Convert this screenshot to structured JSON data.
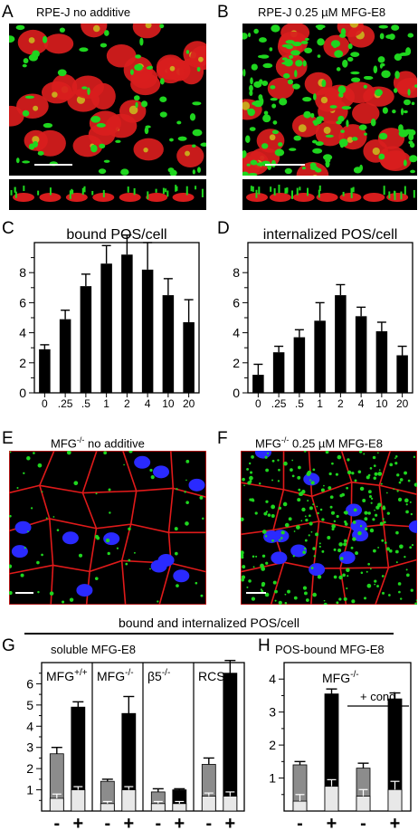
{
  "panels": {
    "A": {
      "letter": "A",
      "title": "RPE-J  no additive"
    },
    "B": {
      "letter": "B",
      "title": "RPE-J  0.25 µM MFG-E8"
    },
    "C": {
      "letter": "C"
    },
    "D": {
      "letter": "D"
    },
    "E": {
      "letter": "E",
      "title_pre": "MFG",
      "title_sup": "-/-",
      "title_post": " no additive"
    },
    "F": {
      "letter": "F",
      "title_pre": "MFG",
      "title_sup": "-/-",
      "title_post": " 0.25 µM MFG-E8"
    },
    "G": {
      "letter": "G"
    },
    "H": {
      "letter": "H"
    }
  },
  "section_title": "bound and internalized POS/cell",
  "colors": {
    "nuclei_red": "#d91d1d",
    "pos_green": "#1fd61f",
    "border_red": "#e01a1a",
    "nuclei_blue": "#2a2aff",
    "bar_black": "#000000",
    "bar_gray": "#8c8c8c",
    "bar_light": "#e8e8e8"
  },
  "chart_data": [
    {
      "type": "bar",
      "panel": "C",
      "title": "bound POS/cell",
      "categories": [
        "0",
        ".25",
        ".5",
        "1",
        "2",
        "4",
        "10",
        "20"
      ],
      "values": [
        2.9,
        4.9,
        7.1,
        8.6,
        9.2,
        8.2,
        6.5,
        4.7
      ],
      "errors": [
        0.3,
        0.6,
        0.8,
        1.2,
        1.3,
        1.8,
        1.1,
        1.5
      ],
      "ylim": [
        0,
        10
      ],
      "yticks": [
        "0",
        "2",
        "4",
        "6",
        "8"
      ]
    },
    {
      "type": "bar",
      "panel": "D",
      "title": "internalized POS/cell",
      "categories": [
        "0",
        ".25",
        ".5",
        "1",
        "2",
        "4",
        "10",
        "20"
      ],
      "values": [
        1.2,
        2.7,
        3.7,
        4.8,
        6.5,
        5.1,
        4.1,
        2.5
      ],
      "errors": [
        0.7,
        0.4,
        0.5,
        1.2,
        0.7,
        0.6,
        0.6,
        0.6
      ],
      "ylim": [
        0,
        10
      ],
      "yticks": [
        "0",
        "2",
        "4",
        "6",
        "8"
      ]
    },
    {
      "type": "bar",
      "panel": "G",
      "title": "soluble MFG-E8",
      "ylim": [
        0,
        7
      ],
      "yticks": [
        "1",
        "2",
        "3",
        "4",
        "5",
        "6"
      ],
      "groups": [
        {
          "label_pre": "MFG",
          "label_sup": "+/+",
          "bars": [
            {
              "x": "-",
              "internalized": 0.6,
              "internalized_err": 0.2,
              "total": 2.7,
              "total_err": 0.3,
              "style": "gray"
            },
            {
              "x": "+",
              "internalized": 1.0,
              "internalized_err": 0.15,
              "total": 4.9,
              "total_err": 0.25,
              "style": "black"
            }
          ]
        },
        {
          "label_pre": "MFG",
          "label_sup": "-/-",
          "bars": [
            {
              "x": "-",
              "internalized": 0.35,
              "internalized_err": 0.1,
              "total": 1.4,
              "total_err": 0.1,
              "style": "gray"
            },
            {
              "x": "+",
              "internalized": 1.0,
              "internalized_err": 0.15,
              "total": 4.6,
              "total_err": 0.8,
              "style": "black"
            }
          ]
        },
        {
          "label_pre": "β5",
          "label_sup": "-/-",
          "bars": [
            {
              "x": "-",
              "internalized": 0.35,
              "internalized_err": 0.1,
              "total": 0.9,
              "total_err": 0.15,
              "style": "gray"
            },
            {
              "x": "+",
              "internalized": 0.35,
              "internalized_err": 0.1,
              "total": 1.0,
              "total_err": 0.05,
              "style": "black"
            }
          ]
        },
        {
          "label_pre": "RCS",
          "label_sup": "",
          "bars": [
            {
              "x": "-",
              "internalized": 0.7,
              "internalized_err": 0.15,
              "total": 2.2,
              "total_err": 0.3,
              "style": "gray"
            },
            {
              "x": "+",
              "internalized": 0.7,
              "internalized_err": 0.2,
              "total": 6.5,
              "total_err": 0.6,
              "style": "black"
            }
          ]
        }
      ]
    },
    {
      "type": "bar",
      "panel": "H",
      "title": "POS-bound MFG-E8",
      "ylim": [
        0,
        4.5
      ],
      "yticks": [
        "1",
        "2",
        "3",
        "4"
      ],
      "group_label_pre": "MFG",
      "group_label_sup": "-/-",
      "cond_label": "+ cond.",
      "bars": [
        {
          "x": "-",
          "internalized": 0.3,
          "internalized_err": 0.2,
          "total": 1.4,
          "total_err": 0.1,
          "style": "gray"
        },
        {
          "x": "+",
          "internalized": 0.75,
          "internalized_err": 0.2,
          "total": 3.55,
          "total_err": 0.15,
          "style": "black"
        },
        {
          "x": "-",
          "internalized": 0.45,
          "internalized_err": 0.2,
          "total": 1.3,
          "total_err": 0.15,
          "style": "gray"
        },
        {
          "x": "+",
          "internalized": 0.65,
          "internalized_err": 0.25,
          "total": 3.4,
          "total_err": 0.18,
          "style": "black"
        }
      ]
    }
  ]
}
